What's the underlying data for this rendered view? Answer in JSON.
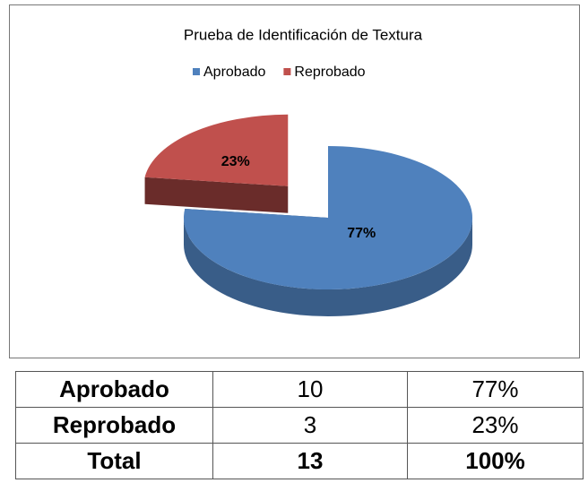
{
  "chart_data": {
    "type": "pie",
    "title": "Prueba de Identificación de Textura",
    "categories": [
      "Aprobado",
      "Reprobado"
    ],
    "values": [
      77,
      23
    ],
    "value_labels": [
      "77%",
      "23%"
    ],
    "colors": [
      "#4f81bd",
      "#c0504d"
    ],
    "legend": "top"
  },
  "table": {
    "rows": [
      [
        "Aprobado",
        "10",
        "77%"
      ],
      [
        "Reprobado",
        "3",
        "23%"
      ],
      [
        "Total",
        "13",
        "100%"
      ]
    ]
  }
}
